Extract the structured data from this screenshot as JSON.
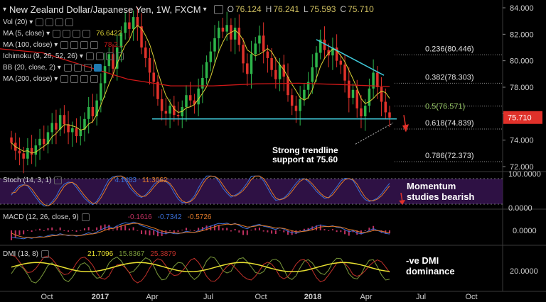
{
  "header": {
    "symbol_label": "New Zealand Dollar/Japanese Yen, 1W, FXCM",
    "o_label": "O",
    "o": "76.124",
    "h_label": "H",
    "h": "76.241",
    "l_label": "L",
    "l": "75.593",
    "c_label": "C",
    "c": "75.710"
  },
  "indicators": [
    {
      "name": "Vol (20)",
      "value": ""
    },
    {
      "name": "MA (5, close)",
      "value": "76.6422"
    },
    {
      "name": "MA (100, close)",
      "value": "78.2..."
    },
    {
      "name": "Ichimoku (9, 26, 52, 26)",
      "value": ""
    },
    {
      "name": "BB (20, close, 2)",
      "value": ""
    },
    {
      "name": "MA (200, close)",
      "value": ""
    }
  ],
  "panes": {
    "stoch": {
      "name": "Stoch (14, 3, 1)",
      "v1": "4.1483",
      "v2": "11.3062"
    },
    "macd": {
      "name": "MACD (12, 26, close, 9)",
      "v1": "-0.1616",
      "v2": "-0.7342",
      "v3": "-0.5726"
    },
    "dmi": {
      "name": "DMI (13, 8)",
      "v1": "21.7096",
      "v2": "15.8367",
      "v3": "25.3879"
    }
  },
  "annotations": {
    "trendline": "Strong trendline\nsupport at 75.60",
    "momentum": "Momentum\nstudies bearish",
    "dmi": "-ve DMI\ndominance"
  },
  "colors": {
    "up": "#2db54a",
    "down": "#e0312a",
    "ma5": "#d9cf35",
    "ma100": "#d01818",
    "support": "#3fc8d8",
    "resistance": "#3fc8d8",
    "fib": "#c8c8c8",
    "stoch_k": "#3a6fd8",
    "stoch_d": "#e07a2a",
    "stoch_band": "#3a1555",
    "macd": "#3a6fd8",
    "signal": "#e07a2a",
    "hist": "#c03060",
    "dmi_plus": "#7a9a3a",
    "dmi_minus": "#c0302a",
    "adx": "#e8e030",
    "price_tag": "#e0312a"
  },
  "chart_data": {
    "type": "candlestick",
    "title": "New Zealand Dollar/Japanese Yen, 1W, FXCM",
    "x_ticks": [
      "Oct",
      "2017",
      "Apr",
      "Jul",
      "Oct",
      "2018",
      "Apr",
      "Jul",
      "Oct"
    ],
    "price_axis": {
      "ticks": [
        "84.000",
        "82.000",
        "80.000",
        "78.000",
        "76.000",
        "74.000",
        "72.000"
      ],
      "range": [
        72.0,
        84.0
      ]
    },
    "current_price": "75.710",
    "support_level": 75.6,
    "fibonacci": [
      {
        "label": "0.236(80.446)",
        "value": 80.446
      },
      {
        "label": "0.382(78.303)",
        "value": 78.303
      },
      {
        "label": "0.5(76.571)",
        "value": 76.571
      },
      {
        "label": "0.618(74.839)",
        "value": 74.839
      },
      {
        "label": "0.786(72.373)",
        "value": 72.373
      }
    ],
    "closes": [
      73.8,
      73.2,
      73.0,
      72.6,
      73.4,
      72.9,
      73.6,
      74.1,
      73.7,
      74.6,
      75.3,
      74.8,
      75.9,
      75.2,
      74.6,
      74.9,
      74.3,
      74.8,
      75.6,
      76.5,
      75.8,
      77.0,
      78.3,
      79.6,
      80.5,
      79.4,
      81.0,
      82.1,
      82.9,
      82.4,
      83.3,
      82.6,
      81.0,
      80.2,
      79.1,
      78.4,
      77.1,
      76.2,
      76.0,
      76.6,
      75.9,
      75.8,
      76.5,
      77.4,
      77.0,
      76.7,
      77.9,
      78.7,
      79.9,
      80.7,
      81.7,
      82.5,
      82.2,
      82.7,
      81.6,
      82.5,
      81.2,
      79.8,
      79.0,
      80.5,
      81.3,
      81.9,
      80.7,
      80.2,
      79.3,
      78.6,
      79.7,
      78.8,
      77.4,
      76.6,
      76.2,
      77.1,
      77.8,
      78.4,
      79.5,
      80.6,
      81.6,
      80.8,
      80.4,
      81.0,
      80.0,
      79.7,
      78.5,
      77.2,
      77.8,
      76.4,
      75.8,
      76.6,
      77.9,
      79.1,
      78.0,
      76.9,
      76.1,
      75.7
    ],
    "stoch": {
      "ticks": [
        "100.0000",
        "0.0000"
      ]
    },
    "macd": {
      "ticks": [
        "0.0000"
      ]
    },
    "dmi": {
      "ticks": [
        "20.0000"
      ]
    }
  }
}
